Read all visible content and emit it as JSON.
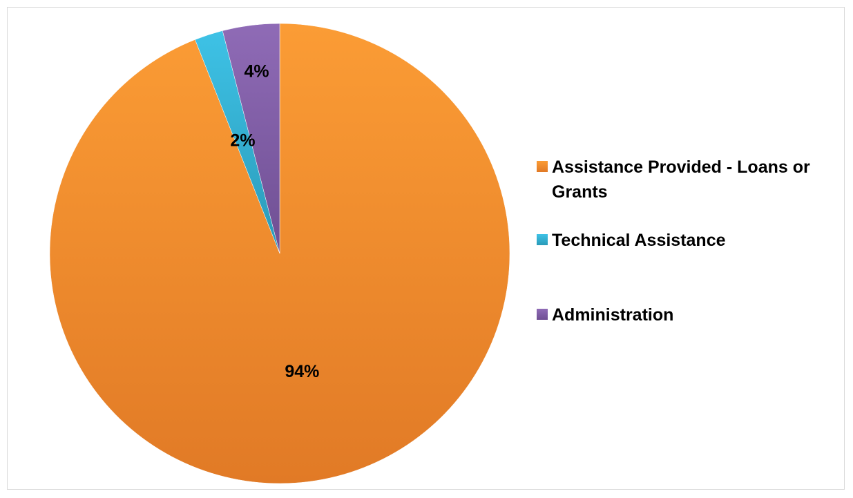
{
  "chart_data": {
    "type": "pie",
    "title": "",
    "slices": [
      {
        "label": "Assistance Provided - Loans or Grants",
        "value": 94,
        "display": "94%",
        "color": "#f7962f"
      },
      {
        "label": "Technical Assistance",
        "value": 2,
        "display": "2%",
        "color": "#2fb6d9"
      },
      {
        "label": "Administration",
        "value": 4,
        "display": "4%",
        "color": "#8560a8"
      }
    ],
    "start": "12 o'clock",
    "direction": "clockwise",
    "legend_position": "right"
  }
}
